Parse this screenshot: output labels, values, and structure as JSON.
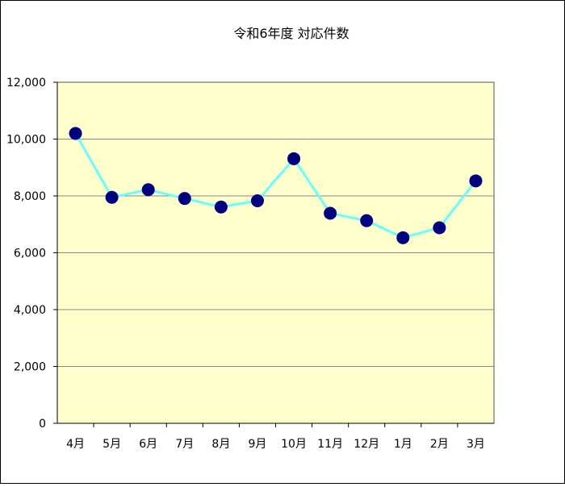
{
  "chart_data": {
    "type": "line",
    "title": "令和6年度 対応件数",
    "categories": [
      "4月",
      "5月",
      "6月",
      "7月",
      "8月",
      "9月",
      "10月",
      "11月",
      "12月",
      "1月",
      "2月",
      "3月"
    ],
    "series": [
      {
        "values": [
          10200,
          7950,
          8220,
          7910,
          7610,
          7830,
          9310,
          7390,
          7130,
          6530,
          6880,
          8530
        ]
      }
    ],
    "ylim": [
      0,
      12000
    ],
    "yticks": [
      0,
      2000,
      4000,
      6000,
      8000,
      10000,
      12000
    ],
    "ytick_labels": [
      "0",
      "2,000",
      "4,000",
      "6,000",
      "8,000",
      "10,000",
      "12,000"
    ],
    "grid": "horizontal",
    "legend": "none",
    "colors": {
      "plot_background": "#FFFFCC",
      "line": "#66FFFF",
      "marker": "#000080",
      "gridline": "#888888",
      "axis": "#000000"
    }
  }
}
